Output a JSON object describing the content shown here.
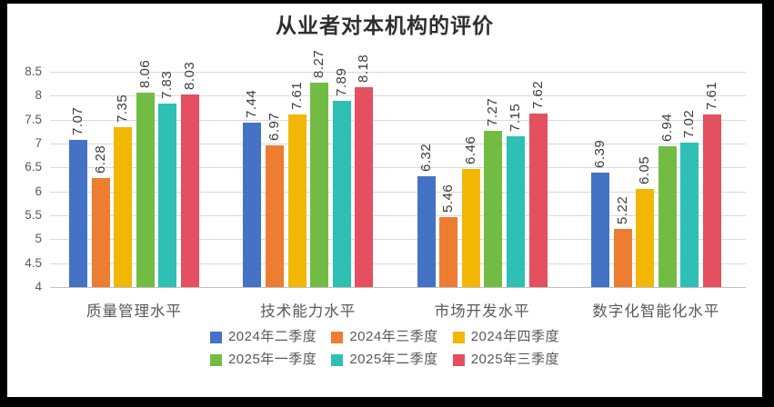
{
  "frame": {
    "background_color": "#000000",
    "chart_background_color": "#ffffff"
  },
  "chart_data": {
    "type": "bar",
    "title": "从业者对本机构的评价",
    "categories": [
      "质量管理水平",
      "技术能力水平",
      "市场开发水平",
      "数字化智能化水平"
    ],
    "series": [
      {
        "name": "2024年二季度",
        "color": "#4472C4",
        "values": [
          7.07,
          7.44,
          6.32,
          6.39
        ],
        "labels": [
          "7.07",
          "7.44",
          "6.32",
          "6.39"
        ]
      },
      {
        "name": "2024年三季度",
        "color": "#ED7D31",
        "values": [
          6.28,
          6.97,
          5.46,
          5.22
        ],
        "labels": [
          "6.28",
          "6.97",
          "5.46",
          "5.22"
        ]
      },
      {
        "name": "2024年四季度",
        "color": "#F2B705",
        "values": [
          7.35,
          7.61,
          6.46,
          6.05
        ],
        "labels": [
          "7.35",
          "7.61",
          "6.46",
          "6.05"
        ]
      },
      {
        "name": "2025年一季度",
        "color": "#72BC44",
        "values": [
          8.06,
          8.27,
          7.27,
          6.94
        ],
        "labels": [
          "8.06",
          "8.27",
          "7.27",
          "6.94"
        ]
      },
      {
        "name": "2025年二季度",
        "color": "#2EBFB5",
        "values": [
          7.83,
          7.89,
          7.15,
          7.02
        ],
        "labels": [
          "7.83",
          "7.89",
          "7.15",
          "7.02"
        ]
      },
      {
        "name": "2025年三季度",
        "color": "#E4505F",
        "values": [
          8.03,
          8.18,
          7.62,
          7.61
        ],
        "labels": [
          "8.03",
          "8.18",
          "7.62",
          "7.61"
        ]
      }
    ],
    "ylim": [
      4,
      8.5
    ],
    "ytick_step": 0.5,
    "ytick_labels": [
      "8.5",
      "8",
      "7.5",
      "7",
      "6.5",
      "6",
      "5.5",
      "5",
      "4.5",
      "4"
    ],
    "grid": true,
    "legend_position": "bottom",
    "legend_rows": [
      [
        0,
        1,
        2
      ],
      [
        3,
        4,
        5
      ]
    ],
    "data_label_rotation": -90
  },
  "styles": {
    "grid_color": "#d9d9d9",
    "axis_line_color": "#bfbfbf",
    "tick_label_color": "#595959",
    "category_label_color": "#595959",
    "legend_text_color": "#595959",
    "data_label_color": "#3b3b3b",
    "title_color": "#2f2f2f"
  }
}
